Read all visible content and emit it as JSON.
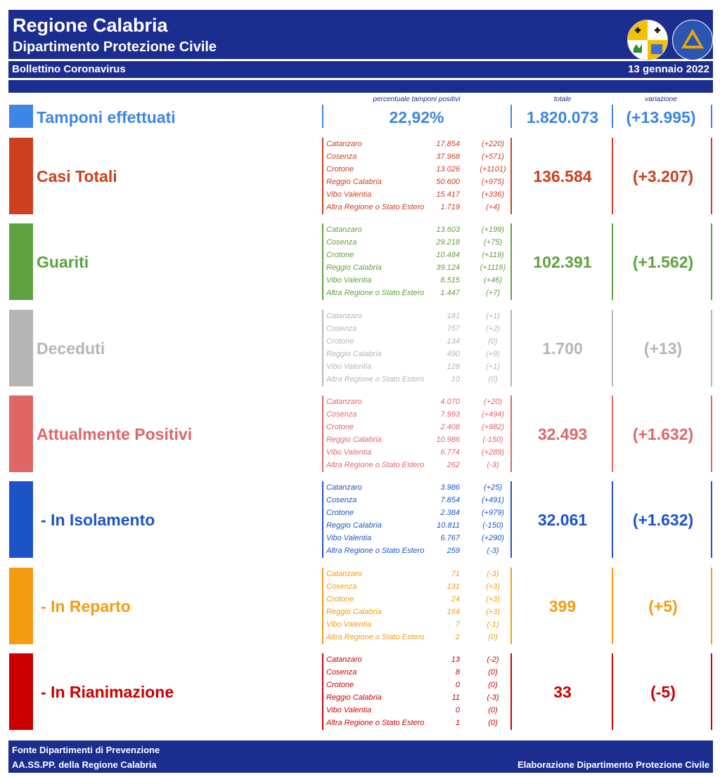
{
  "header": {
    "title": "Regione Calabria",
    "subtitle": "Dipartimento Protezione Civile",
    "bulletin": "Bollettino Coronavirus",
    "date": "13 gennaio 2022",
    "logos": [
      "regione-calabria-crest",
      "protezione-civile-logo"
    ]
  },
  "columns": {
    "pct_label": "percentuale tamponi positivi",
    "total_label": "totale",
    "variation_label": "variazione"
  },
  "tamponi": {
    "label": "Tamponi effettuati",
    "pct": "22,92%",
    "total": "1.820.073",
    "variation": "(+13.995)",
    "color": "#3d85e6"
  },
  "categories": [
    {
      "id": "casi-totali",
      "label": "Casi Totali",
      "color": "#cc3f1f",
      "total": "136.584",
      "variation": "(+3.207)",
      "provinces": [
        {
          "name": "Catanzaro",
          "value": "17.854",
          "delta": "(+220)"
        },
        {
          "name": "Cosenza",
          "value": "37.968",
          "delta": "(+571)"
        },
        {
          "name": "Crotone",
          "value": "13.026",
          "delta": "(+1101)"
        },
        {
          "name": "Reggio Calabria",
          "value": "50.600",
          "delta": "(+975)"
        },
        {
          "name": "Vibo Valentia",
          "value": "15.417",
          "delta": "(+336)"
        },
        {
          "name": "Altra Regione o Stato Estero",
          "value": "1.719",
          "delta": "(+4)"
        }
      ]
    },
    {
      "id": "guariti",
      "label": "Guariti",
      "color": "#5ea23f",
      "total": "102.391",
      "variation": "(+1.562)",
      "provinces": [
        {
          "name": "Catanzaro",
          "value": "13.603",
          "delta": "(+199)"
        },
        {
          "name": "Cosenza",
          "value": "29.218",
          "delta": "(+75)"
        },
        {
          "name": "Crotone",
          "value": "10.484",
          "delta": "(+119)"
        },
        {
          "name": "Reggio Calabria",
          "value": "39.124",
          "delta": "(+1116)"
        },
        {
          "name": "Vibo Valentia",
          "value": "8.515",
          "delta": "(+46)"
        },
        {
          "name": "Altra Regione o Stato Estero",
          "value": "1.447",
          "delta": "(+7)"
        }
      ]
    },
    {
      "id": "deceduti",
      "label": "Deceduti",
      "color": "#b5b5b5",
      "total": "1.700",
      "variation": "(+13)",
      "provinces": [
        {
          "name": "Catanzaro",
          "value": "181",
          "delta": "(+1)"
        },
        {
          "name": "Cosenza",
          "value": "757",
          "delta": "(+2)"
        },
        {
          "name": "Crotone",
          "value": "134",
          "delta": "(0)"
        },
        {
          "name": "Reggio Calabria",
          "value": "490",
          "delta": "(+9)"
        },
        {
          "name": "Vibo Valentia",
          "value": "128",
          "delta": "(+1)"
        },
        {
          "name": "Altra Regione o Stato Estero",
          "value": "10",
          "delta": "(0)"
        }
      ]
    },
    {
      "id": "attualmente-positivi",
      "label": "Attualmente Positivi",
      "color": "#e06666",
      "total": "32.493",
      "variation": "(+1.632)",
      "provinces": [
        {
          "name": "Catanzaro",
          "value": "4.070",
          "delta": "(+20)"
        },
        {
          "name": "Cosenza",
          "value": "7.993",
          "delta": "(+494)"
        },
        {
          "name": "Crotone",
          "value": "2.408",
          "delta": "(+982)"
        },
        {
          "name": "Reggio Calabria",
          "value": "10.986",
          "delta": "(-150)"
        },
        {
          "name": "Vibo Valentia",
          "value": "6.774",
          "delta": "(+289)"
        },
        {
          "name": "Altra Regione o Stato Estero",
          "value": "262",
          "delta": "(-3)"
        }
      ]
    },
    {
      "id": "in-isolamento",
      "label": "- In Isolamento",
      "color": "#1c54c7",
      "total": "32.061",
      "variation": "(+1.632)",
      "provinces": [
        {
          "name": "Catanzaro",
          "value": "3.986",
          "delta": "(+25)"
        },
        {
          "name": "Cosenza",
          "value": "7.854",
          "delta": "(+491)"
        },
        {
          "name": "Crotone",
          "value": "2.384",
          "delta": "(+979)"
        },
        {
          "name": "Reggio Calabria",
          "value": "10.811",
          "delta": "(-150)"
        },
        {
          "name": "Vibo Valentia",
          "value": "6.767",
          "delta": "(+290)"
        },
        {
          "name": "Altra Regione o Stato Estero",
          "value": "259",
          "delta": "(-3)"
        }
      ]
    },
    {
      "id": "in-reparto",
      "label": "- In Reparto",
      "color": "#f39c12",
      "total": "399",
      "variation": "(+5)",
      "provinces": [
        {
          "name": "Catanzaro",
          "value": "71",
          "delta": "(-3)"
        },
        {
          "name": "Cosenza",
          "value": "131",
          "delta": "(+3)"
        },
        {
          "name": "Crotone",
          "value": "24",
          "delta": "(+3)"
        },
        {
          "name": "Reggio Calabria",
          "value": "164",
          "delta": "(+3)"
        },
        {
          "name": "Vibo Valentia",
          "value": "7",
          "delta": "(-1)"
        },
        {
          "name": "Altra Regione o Stato Estero",
          "value": "2",
          "delta": "(0)"
        }
      ]
    },
    {
      "id": "in-rianimazione",
      "label": "- In Rianimazione",
      "color": "#cc0000",
      "total": "33",
      "variation": "(-5)",
      "provinces": [
        {
          "name": "Catanzaro",
          "value": "13",
          "delta": "(-2)"
        },
        {
          "name": "Cosenza",
          "value": "8",
          "delta": "(0)"
        },
        {
          "name": "Crotone",
          "value": "0",
          "delta": "(0)"
        },
        {
          "name": "Reggio Calabria",
          "value": "11",
          "delta": "(-3)"
        },
        {
          "name": "Vibo Valentia",
          "value": "0",
          "delta": "(0)"
        },
        {
          "name": "Altra Regione o Stato Estero",
          "value": "1",
          "delta": "(0)"
        }
      ]
    }
  ],
  "footer": {
    "line1": "Fonte Dipartimenti di Prevenzione",
    "line2": "AA.SS.PP.  della Regione Calabria",
    "credit": "Elaborazione Dipartimento Protezione Civile"
  }
}
